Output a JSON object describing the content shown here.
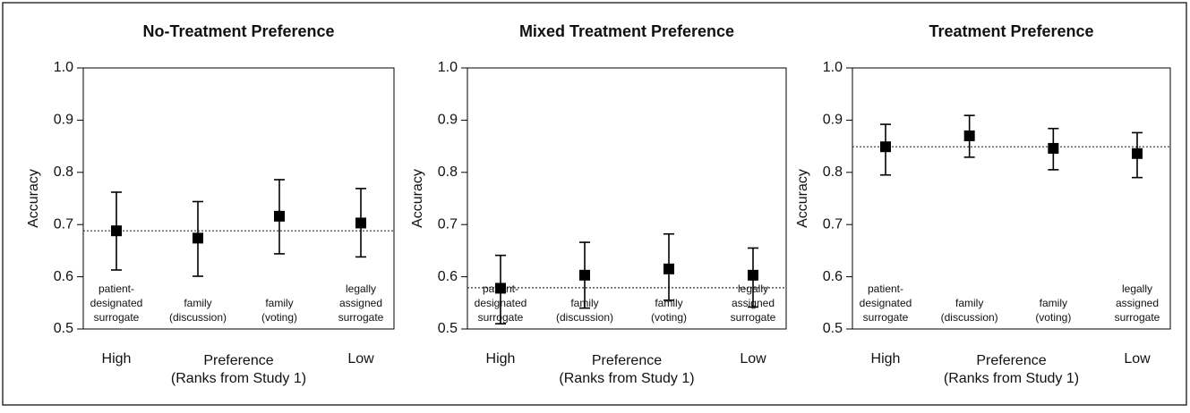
{
  "chart_data": [
    {
      "type": "errorbar",
      "title": "No-Treatment Preference",
      "ylabel": "Accuracy",
      "xlabel": "Preference",
      "xlabel_sub": "(Ranks from Study 1)",
      "x_end_labels": [
        "High",
        "Low"
      ],
      "categories": [
        "patient-\ndesignated\nsurrogate",
        "family\n(discussion)",
        "family\n(voting)",
        "legally\nassigned\nsurrogate"
      ],
      "values": [
        0.688,
        0.674,
        0.716,
        0.703
      ],
      "lower": [
        0.613,
        0.601,
        0.644,
        0.638
      ],
      "upper": [
        0.762,
        0.744,
        0.786,
        0.769
      ],
      "reference_line": 0.688,
      "color": "#000000",
      "ylim": [
        0.5,
        1.0
      ],
      "yticks": [
        0.5,
        0.6,
        0.7,
        0.8,
        0.9,
        {
          "value": 1.0,
          "label": "1.0"
        }
      ]
    },
    {
      "type": "errorbar",
      "title": "Mixed Treatment Preference",
      "ylabel": "Accuracy",
      "xlabel": "Preference",
      "xlabel_sub": "(Ranks from Study 1)",
      "x_end_labels": [
        "High",
        "Low"
      ],
      "categories": [
        "patient-\ndesignated\nsurrogate",
        "family\n(discussion)",
        "family\n(voting)",
        "legally\nassigned\nsurrogate"
      ],
      "values": [
        0.578,
        0.603,
        0.615,
        0.603
      ],
      "lower": [
        0.51,
        0.54,
        0.555,
        0.542
      ],
      "upper": [
        0.641,
        0.666,
        0.682,
        0.655
      ],
      "reference_line": 0.579,
      "color": "#000000",
      "ylim": [
        0.5,
        1.0
      ],
      "yticks": [
        0.5,
        0.6,
        0.7,
        0.8,
        0.9,
        {
          "value": 1.0,
          "label": "1.0"
        }
      ]
    },
    {
      "type": "errorbar",
      "title": "Treatment Preference",
      "ylabel": "Accuracy",
      "xlabel": "Preference",
      "xlabel_sub": "(Ranks from Study 1)",
      "x_end_labels": [
        "High",
        "Low"
      ],
      "categories": [
        "patient-\ndesignated\nsurrogate",
        "family\n(discussion)",
        "family\n(voting)",
        "legally\nassigned\nsurrogate"
      ],
      "values": [
        0.849,
        0.87,
        0.846,
        0.836
      ],
      "lower": [
        0.795,
        0.829,
        0.805,
        0.79
      ],
      "upper": [
        0.892,
        0.909,
        0.884,
        0.876
      ],
      "reference_line": 0.849,
      "color": "#000000",
      "ylim": [
        0.5,
        1.0
      ],
      "yticks": [
        0.5,
        0.6,
        0.7,
        0.8,
        0.9,
        {
          "value": 1.0,
          "label": "1.0"
        }
      ]
    }
  ]
}
